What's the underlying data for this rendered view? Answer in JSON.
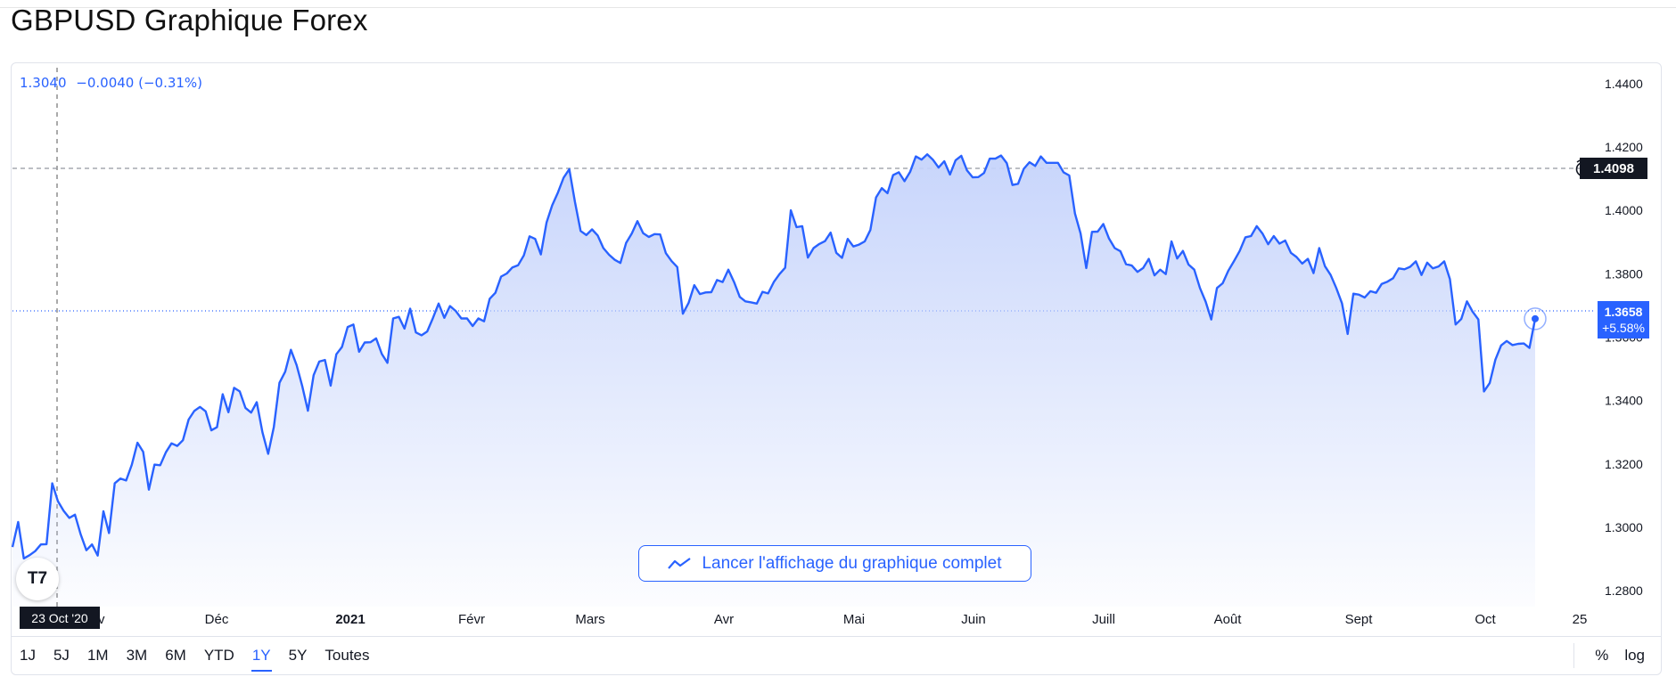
{
  "page_title": "GBPUSD Graphique Forex",
  "legend": {
    "price": "1.3040",
    "change": "−0.0040 (−0.31%)"
  },
  "crosshair_date": "23 Oct '20",
  "last_price": {
    "value": "1.3658",
    "change_pct": "+5.58%"
  },
  "highlight_price": {
    "value": "1.4098"
  },
  "cta_label": "Lancer l'affichage du graphique complet",
  "logo_text": "T7",
  "ranges": [
    "1J",
    "5J",
    "1M",
    "3M",
    "6M",
    "YTD",
    "1Y",
    "5Y",
    "Toutes"
  ],
  "active_range": "1Y",
  "right_options": [
    "%",
    "log"
  ],
  "colors": {
    "line": "#2962ff",
    "fill_top": "#c9d6fb",
    "axis_text": "#131722"
  },
  "chart_data": {
    "type": "area",
    "title": "GBPUSD Graphique Forex",
    "x_tick_labels": [
      "Déc",
      "2021",
      "Févr",
      "Mars",
      "Avr",
      "Mai",
      "Juin",
      "Juill",
      "Août",
      "Sept",
      "Oct",
      "25"
    ],
    "y_tick_labels": [
      "1.4400",
      "1.4200",
      "1.4000",
      "1.3800",
      "1.3600",
      "1.3400",
      "1.3200",
      "1.3000",
      "1.2800"
    ],
    "ylim": [
      1.275,
      1.445
    ],
    "grid": false,
    "series": [
      {
        "values": [
          1.2938,
          1.3017,
          1.2902,
          1.2912,
          1.2925,
          1.2946,
          1.2947,
          1.3139,
          1.3082,
          1.3052,
          1.303,
          1.304,
          1.2978,
          1.2928,
          1.2946,
          1.2911,
          1.3051,
          1.2982,
          1.3139,
          1.3154,
          1.3148,
          1.3197,
          1.3267,
          1.3238,
          1.3119,
          1.3198,
          1.3196,
          1.3237,
          1.3265,
          1.3257,
          1.3275,
          1.334,
          1.3367,
          1.338,
          1.3366,
          1.3306,
          1.3316,
          1.342,
          1.3363,
          1.344,
          1.3429,
          1.3377,
          1.3362,
          1.3395,
          1.33,
          1.3232,
          1.3317,
          1.3456,
          1.3491,
          1.356,
          1.3512,
          1.3446,
          1.3368,
          1.348,
          1.3523,
          1.3528,
          1.3447,
          1.3546,
          1.3569,
          1.3632,
          1.364,
          1.3554,
          1.3583,
          1.3584,
          1.3596,
          1.3547,
          1.3519,
          1.3659,
          1.3664,
          1.3627,
          1.369,
          1.3615,
          1.3606,
          1.3618,
          1.366,
          1.3706,
          1.3661,
          1.3698,
          1.3683,
          1.3659,
          1.3659,
          1.3635,
          1.3659,
          1.365,
          1.3721,
          1.374,
          1.3791,
          1.3801,
          1.382,
          1.3827,
          1.3858,
          1.3918,
          1.391,
          1.3861,
          1.3962,
          1.4016,
          1.4056,
          1.4103,
          1.413,
          1.4027,
          1.3935,
          1.3922,
          1.394,
          1.3921,
          1.3881,
          1.386,
          1.3844,
          1.3834,
          1.3897,
          1.3927,
          1.3966,
          1.3928,
          1.3916,
          1.3925,
          1.3924,
          1.3865,
          1.384,
          1.3821,
          1.3674,
          1.3708,
          1.3764,
          1.3736,
          1.3741,
          1.3742,
          1.378,
          1.3774,
          1.3813,
          1.3774,
          1.3727,
          1.3713,
          1.371,
          1.3706,
          1.3743,
          1.3738,
          1.3774,
          1.3799,
          1.3819,
          1.4,
          1.3947,
          1.395,
          1.3851,
          1.3881,
          1.3894,
          1.3903,
          1.393,
          1.3866,
          1.385,
          1.391,
          1.3886,
          1.3892,
          1.3902,
          1.3938,
          1.4041,
          1.407,
          1.4054,
          1.4111,
          1.412,
          1.4092,
          1.4122,
          1.417,
          1.416,
          1.4177,
          1.416,
          1.4135,
          1.4155,
          1.4113,
          1.4158,
          1.4172,
          1.4126,
          1.4104,
          1.4105,
          1.4118,
          1.4163,
          1.4163,
          1.4173,
          1.4149,
          1.408,
          1.4084,
          1.4131,
          1.4152,
          1.414,
          1.417,
          1.415,
          1.415,
          1.415,
          1.412,
          1.411,
          1.399,
          1.3927,
          1.3818,
          1.3932,
          1.3933,
          1.3957,
          1.3911,
          1.3881,
          1.3871,
          1.383,
          1.3826,
          1.3806,
          1.3818,
          1.3847,
          1.3795,
          1.3813,
          1.3799,
          1.3902,
          1.3848,
          1.3872,
          1.3829,
          1.3813,
          1.3755,
          1.3712,
          1.3656,
          1.3755,
          1.377,
          1.381,
          1.384,
          1.3872,
          1.3915,
          1.3919,
          1.395,
          1.3927,
          1.3893,
          1.3919,
          1.3895,
          1.3905,
          1.3866,
          1.3853,
          1.3832,
          1.3847,
          1.3802,
          1.3881,
          1.3824,
          1.3796,
          1.3755,
          1.3707,
          1.361,
          1.3737,
          1.3734,
          1.3725,
          1.3745,
          1.374,
          1.3768,
          1.3775,
          1.3786,
          1.3817,
          1.3814,
          1.3822,
          1.3839,
          1.3796,
          1.3835,
          1.3817,
          1.3823,
          1.3839,
          1.3783,
          1.364,
          1.3657,
          1.3713,
          1.368,
          1.3656,
          1.3429,
          1.3455,
          1.3529,
          1.3574,
          1.3588,
          1.3575,
          1.3579,
          1.358,
          1.3566,
          1.3658
        ]
      }
    ]
  }
}
